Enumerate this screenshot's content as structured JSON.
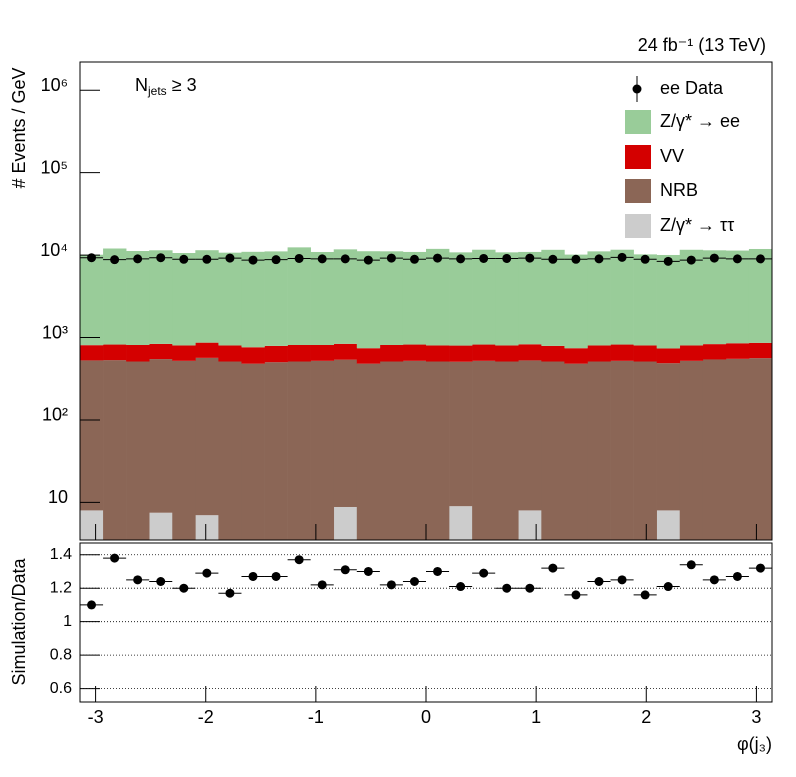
{
  "chart_data": [
    {
      "type": "stacked-log-histogram",
      "ylabel": "# Events / GeV",
      "lumi": "24 fb⁻¹ (13 TeV)",
      "annotation": {
        "main": "N",
        "subscript": "jets",
        "rest": "≥ 3"
      },
      "bins_count": 30,
      "xlim": [
        -3.1416,
        3.1416
      ],
      "ylim": [
        3.5,
        2200000
      ],
      "log_y": true,
      "yticks": [
        10,
        {
          "value": 100,
          "label": "10²"
        },
        {
          "value": 1000,
          "label": "10³"
        },
        {
          "value": 10000,
          "label": "10⁴"
        },
        {
          "value": 100000,
          "label": "10⁵"
        },
        {
          "value": 1000000,
          "label": "10⁶"
        }
      ],
      "series": [
        {
          "name": "Z/γ* → ττ",
          "color": "#cccccc",
          "values": [
            8,
            2,
            2,
            7.5,
            2,
            7,
            2,
            2,
            2,
            2,
            2,
            8.8,
            2,
            2,
            2,
            2,
            9,
            2,
            2,
            8,
            2,
            2,
            2,
            2,
            2,
            8,
            2,
            2,
            2,
            2
          ]
        },
        {
          "name": "NRB",
          "color": "#8b6656",
          "values": [
            520,
            530,
            510,
            540,
            520,
            560,
            510,
            480,
            500,
            510,
            520,
            530,
            480,
            510,
            520,
            510,
            500,
            520,
            510,
            520,
            510,
            480,
            510,
            520,
            510,
            480,
            520,
            540,
            550,
            560
          ]
        },
        {
          "name": "VV",
          "color": "#d40000",
          "values": [
            280,
            290,
            300,
            290,
            280,
            300,
            290,
            280,
            290,
            300,
            290,
            300,
            260,
            300,
            300,
            290,
            290,
            300,
            290,
            300,
            280,
            260,
            290,
            300,
            290,
            250,
            280,
            290,
            300,
            300
          ]
        },
        {
          "name": "Z/γ* → ee",
          "color": "#99cc99",
          "values": [
            9300,
            11200,
            10400,
            10600,
            9800,
            10600,
            9900,
            10200,
            10300,
            11600,
            10100,
            10900,
            10400,
            10300,
            10100,
            11100,
            10000,
            10800,
            10000,
            10100,
            10800,
            9400,
            10300,
            10800,
            9400,
            9300,
            10800,
            10600,
            10500,
            11000
          ]
        }
      ],
      "data": {
        "name": "ee Data",
        "color": "#000000",
        "values": [
          9300,
          8800,
          9000,
          9300,
          8900,
          8900,
          9200,
          8700,
          8800,
          9100,
          9000,
          9000,
          8700,
          9200,
          8900,
          9200,
          9000,
          9100,
          9100,
          9200,
          8900,
          8900,
          9000,
          9400,
          8900,
          8400,
          8700,
          9200,
          9000,
          9000
        ]
      }
    },
    {
      "type": "ratio",
      "ylabel": "Simulation/Data",
      "xlabel": "φ(j₃)",
      "xlim": [
        -3.1416,
        3.1416
      ],
      "xticks": [
        -3,
        -2,
        -1,
        0,
        1,
        2,
        3
      ],
      "ylim": [
        0.52,
        1.47
      ],
      "yticks": [
        0.6,
        0.8,
        1,
        1.2,
        1.4
      ],
      "grid": true,
      "values": [
        1.1,
        1.38,
        1.25,
        1.24,
        1.2,
        1.29,
        1.17,
        1.27,
        1.27,
        1.37,
        1.22,
        1.31,
        1.3,
        1.22,
        1.24,
        1.3,
        1.21,
        1.29,
        1.2,
        1.2,
        1.32,
        1.16,
        1.24,
        1.25,
        1.16,
        1.21,
        1.34,
        1.25,
        1.27,
        1.32
      ],
      "errors": [
        0.025,
        0.025,
        0.025,
        0.025,
        0.025,
        0.025,
        0.025,
        0.025,
        0.025,
        0.025,
        0.025,
        0.025,
        0.025,
        0.025,
        0.025,
        0.025,
        0.025,
        0.025,
        0.025,
        0.025,
        0.025,
        0.025,
        0.025,
        0.025,
        0.025,
        0.025,
        0.025,
        0.025,
        0.025,
        0.025
      ]
    }
  ]
}
